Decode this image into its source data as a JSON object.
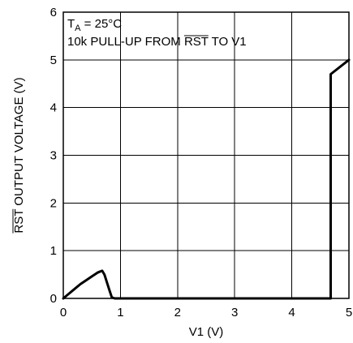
{
  "chart_data": {
    "type": "line",
    "title": "",
    "xlabel": "V1 (V)",
    "ylabel": {
      "overbar": "RST",
      "text": " OUTPUT VOLTAGE (V)"
    },
    "xlim": [
      0,
      5
    ],
    "ylim": [
      0,
      6
    ],
    "xticks": [
      0,
      1,
      2,
      3,
      4,
      5
    ],
    "yticks": [
      0,
      1,
      2,
      3,
      4,
      5,
      6
    ],
    "grid": true,
    "annotations": {
      "line1": {
        "main": "T",
        "sub": "A",
        "rest": " = 25°C"
      },
      "line2": {
        "before": "10k PULL-UP FROM ",
        "overbar": "RST",
        "after": " TO V1"
      }
    },
    "series": [
      {
        "x": [
          0,
          0.1,
          0.2,
          0.3,
          0.4,
          0.5,
          0.6,
          0.68,
          0.72,
          0.8,
          0.85,
          0.9,
          4.5,
          4.68,
          4.68,
          5.0
        ],
        "y": [
          0,
          0.1,
          0.2,
          0.3,
          0.38,
          0.46,
          0.54,
          0.58,
          0.5,
          0.2,
          0.02,
          0,
          0,
          0,
          4.7,
          5.0
        ]
      }
    ]
  }
}
